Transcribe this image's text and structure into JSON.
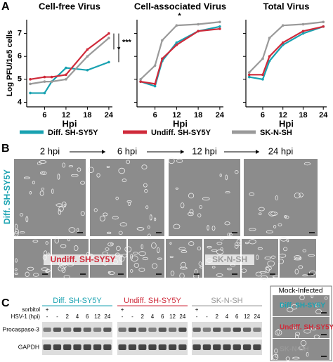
{
  "chart_data": [
    {
      "type": "line",
      "title": "Cell-free Virus",
      "ylabel": "Log PFU/1e5 cells",
      "xlabel": "Hpi",
      "x": [
        2,
        6,
        8,
        12,
        18,
        24
      ],
      "xlim": [
        1,
        25
      ],
      "xticks": [
        6,
        12,
        18,
        24
      ],
      "ylim": [
        3.8,
        7.6
      ],
      "yticks": [
        4,
        5,
        6,
        7
      ],
      "series": [
        {
          "name": "Diff. SH-SY5Y",
          "color": "#19a2b1",
          "values": [
            4.4,
            4.4,
            4.9,
            5.5,
            5.4,
            5.75
          ]
        },
        {
          "name": "Undiff. SH-SY5Y",
          "color": "#cf2a3a",
          "values": [
            5.0,
            5.1,
            5.1,
            5.2,
            6.3,
            7.0
          ]
        },
        {
          "name": "SK-N-SH",
          "color": "#9a9a9a",
          "values": [
            4.8,
            4.9,
            4.9,
            5.0,
            6.0,
            6.8
          ]
        }
      ],
      "annotations": [
        "*",
        "***"
      ]
    },
    {
      "type": "line",
      "title": "Cell-associated Virus",
      "xlabel": "Hpi",
      "x": [
        2,
        6,
        8,
        12,
        18,
        24
      ],
      "xlim": [
        1,
        25
      ],
      "xticks": [
        6,
        12,
        18,
        24
      ],
      "ylim": [
        3.8,
        7.6
      ],
      "yticks": [
        4,
        5,
        6,
        7
      ],
      "series": [
        {
          "name": "Diff. SH-SY5Y",
          "color": "#19a2b1",
          "values": [
            4.9,
            4.7,
            5.8,
            6.6,
            7.1,
            7.3
          ]
        },
        {
          "name": "Undiff. SH-SY5Y",
          "color": "#cf2a3a",
          "values": [
            4.9,
            4.8,
            5.9,
            6.5,
            7.1,
            7.2
          ]
        },
        {
          "name": "SK-N-SH",
          "color": "#9a9a9a",
          "values": [
            5.0,
            5.6,
            6.7,
            7.35,
            7.4,
            7.5
          ]
        }
      ],
      "annotations": [
        "*"
      ]
    },
    {
      "type": "line",
      "title": "Total Virus",
      "xlabel": "Hpi",
      "x": [
        2,
        6,
        8,
        12,
        18,
        24
      ],
      "xlim": [
        1,
        25
      ],
      "xticks": [
        6,
        12,
        18,
        24
      ],
      "ylim": [
        3.8,
        7.6
      ],
      "yticks": [
        4,
        5,
        6,
        7
      ],
      "series": [
        {
          "name": "Diff. SH-SY5Y",
          "color": "#19a2b1",
          "values": [
            5.1,
            5.0,
            5.8,
            6.5,
            7.0,
            7.3
          ]
        },
        {
          "name": "Undiff. SH-SY5Y",
          "color": "#cf2a3a",
          "values": [
            5.2,
            5.2,
            6.0,
            6.6,
            7.1,
            7.3
          ]
        },
        {
          "name": "SK-N-SH",
          "color": "#9a9a9a",
          "values": [
            5.3,
            5.9,
            6.8,
            7.35,
            7.4,
            7.5
          ]
        }
      ]
    }
  ],
  "panel_labels": [
    "A",
    "B",
    "C"
  ],
  "panel_b": {
    "timepoints": [
      "2 hpi",
      "6 hpi",
      "12 hpi",
      "24 hpi"
    ],
    "row_labels": [
      "Diff. SH-SY5Y",
      "Undiff. SH-SY5Y",
      "SK-N-SH"
    ]
  },
  "panel_c": {
    "groups": [
      "Diff. SH-SY5Y",
      "Undiff. SH-SY5Y",
      "SK-N-SH"
    ],
    "row_labels": [
      "sorbitol",
      "HSV-1 (hpi)"
    ],
    "sorbitol": [
      "+",
      "-"
    ],
    "hpi": [
      "-",
      "-",
      "2",
      "4",
      "6",
      "12",
      "24"
    ],
    "bands": [
      "Procaspase-3",
      "GAPDH"
    ],
    "mock": {
      "title": "Mock-Infected",
      "labels": [
        "Diff. SH-SY5Y",
        "Undiff. SH-SY5Y",
        "SK-N-SH"
      ]
    }
  }
}
